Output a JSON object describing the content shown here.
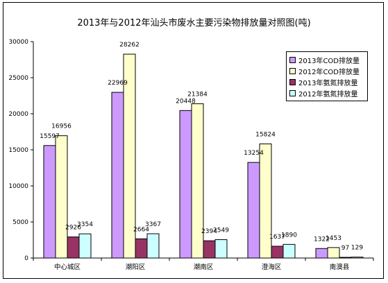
{
  "chart_data": {
    "type": "bar",
    "title": "2013年与2012年汕头市废水主要污染物排放量对照图(吨)",
    "categories": [
      "中心城区",
      "潮阳区",
      "潮南区",
      "澄海区",
      "南澳县"
    ],
    "series": [
      {
        "name": "2013年COD排放量",
        "values": [
          15597,
          22969,
          20448,
          13254,
          1322
        ],
        "color": "#cc99ff"
      },
      {
        "name": "2012年COD排放量",
        "values": [
          16956,
          28262,
          21384,
          15824,
          1453
        ],
        "color": "#ffffcc"
      },
      {
        "name": "2013年氨氮排放量",
        "values": [
          2926,
          2664,
          2394,
          1637,
          97
        ],
        "color": "#993366"
      },
      {
        "name": "2012年氨氮排放量",
        "values": [
          3354,
          3367,
          2549,
          1890,
          129
        ],
        "color": "#ccffff"
      }
    ],
    "ylim": [
      0,
      30000
    ],
    "yticks": [
      0,
      5000,
      10000,
      15000,
      20000,
      25000,
      30000
    ],
    "grid": false,
    "legend": "top-right"
  }
}
